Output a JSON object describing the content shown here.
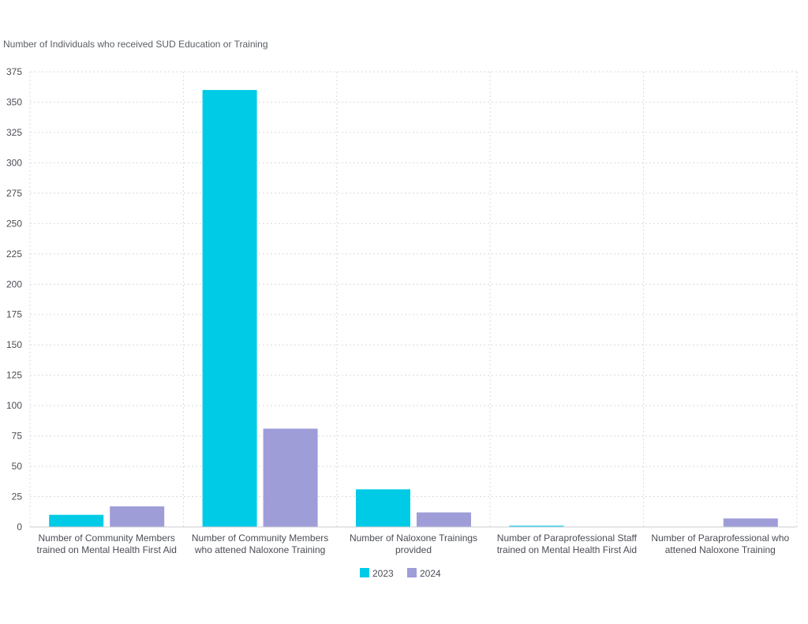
{
  "chart_data": {
    "type": "bar",
    "title": "Number of Individuals who received SUD Education or Training",
    "categories": [
      [
        "Number of Community Members",
        "trained on Mental Health First Aid"
      ],
      [
        "Number of Community Members",
        "who attened Naloxone Training"
      ],
      [
        "Number of Naloxone Trainings",
        "provided"
      ],
      [
        "Number of Paraprofessional Staff",
        "trained on Mental Health First Aid"
      ],
      [
        "Number of Paraprofessional who",
        "attened Naloxone Training"
      ]
    ],
    "series": [
      {
        "name": "2023",
        "color": "#00cbe6",
        "values": [
          10,
          360,
          31,
          1,
          0
        ]
      },
      {
        "name": "2024",
        "color": "#9f9dd8",
        "values": [
          17,
          81,
          12,
          0,
          7
        ]
      }
    ],
    "ylim": [
      0,
      375
    ],
    "yticks": [
      0,
      25,
      50,
      75,
      100,
      125,
      150,
      175,
      200,
      225,
      250,
      275,
      300,
      325,
      350,
      375
    ],
    "xlabel": "",
    "ylabel": "",
    "grid": true,
    "legend": "bottom-center"
  }
}
